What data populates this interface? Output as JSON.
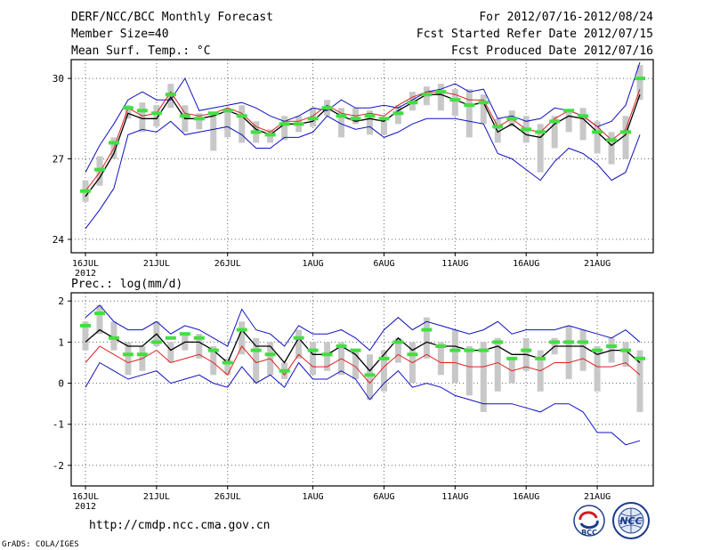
{
  "header": {
    "title": "DERF/NCC/BCC Monthly Forecast",
    "member_size": "Member Size=40",
    "variable": "Mean Surf. Temp.: °C",
    "period": "For 2012/07/16-2012/08/24",
    "start_date": "Fcst Started Refer Date 2012/07/15",
    "produced_date": "Fcst Produced Date 2012/07/16"
  },
  "footer": {
    "url": "http://cmdp.ncc.cma.gov.cn",
    "credit": "GrADS: COLA/IGES",
    "logo_left": "BCC",
    "logo_right": "NCC"
  },
  "colors": {
    "mean": "#000000",
    "median": "#e02020",
    "envelope": "#1010c0",
    "bar": "#c8c8c8",
    "obs": "#40e040"
  },
  "chart_data": [
    {
      "type": "line",
      "title": "Mean Surf. Temp.: °C",
      "x_tick_labels": [
        "16JUL",
        "21JUL",
        "26JUL",
        "1AUG",
        "6AUG",
        "11AUG",
        "16AUG",
        "21AUG"
      ],
      "x_year_label": "2012",
      "x_tick_days": [
        0,
        5,
        10,
        16,
        21,
        26,
        31,
        36
      ],
      "ylim": [
        23.5,
        30.7
      ],
      "yticks": [
        24,
        27,
        30
      ],
      "days": [
        0,
        1,
        2,
        3,
        4,
        5,
        6,
        7,
        8,
        9,
        10,
        11,
        12,
        13,
        14,
        15,
        16,
        17,
        18,
        19,
        20,
        21,
        22,
        23,
        24,
        25,
        26,
        27,
        28,
        29,
        30,
        31,
        32,
        33,
        34,
        35,
        36,
        37,
        38,
        39
      ],
      "series": [
        {
          "name": "upper",
          "values": [
            26.5,
            27.5,
            28.3,
            29.2,
            29.5,
            29.2,
            29.2,
            30.0,
            28.8,
            28.9,
            29.0,
            29.1,
            28.9,
            28.6,
            28.4,
            28.6,
            28.9,
            28.8,
            29.2,
            28.9,
            28.9,
            29.0,
            28.9,
            29.2,
            29.5,
            29.6,
            29.8,
            29.5,
            29.6,
            28.5,
            28.6,
            28.4,
            28.5,
            28.9,
            28.8,
            28.6,
            28.2,
            28.4,
            29.0,
            30.6
          ]
        },
        {
          "name": "mean",
          "values": [
            25.6,
            26.3,
            27.2,
            28.7,
            28.5,
            28.5,
            29.3,
            28.5,
            28.5,
            28.6,
            28.8,
            28.6,
            28.1,
            27.9,
            28.3,
            28.3,
            28.4,
            28.9,
            28.6,
            28.4,
            28.5,
            28.4,
            28.8,
            29.1,
            29.4,
            29.4,
            29.2,
            29.0,
            29.1,
            28.0,
            28.3,
            27.9,
            27.8,
            28.3,
            28.6,
            28.5,
            28.0,
            27.5,
            27.9,
            29.4
          ]
        },
        {
          "name": "median",
          "values": [
            25.8,
            26.5,
            27.4,
            28.9,
            28.6,
            28.7,
            29.5,
            28.7,
            28.6,
            28.7,
            28.9,
            28.7,
            28.2,
            28.0,
            28.4,
            28.4,
            28.6,
            29.0,
            28.7,
            28.6,
            28.7,
            28.6,
            29.0,
            29.3,
            29.5,
            29.5,
            29.4,
            29.2,
            29.2,
            28.2,
            28.5,
            28.1,
            28.0,
            28.5,
            28.8,
            28.6,
            28.2,
            27.7,
            28.1,
            29.6
          ]
        },
        {
          "name": "lower",
          "values": [
            24.4,
            25.1,
            25.9,
            27.9,
            28.1,
            28.0,
            28.4,
            27.9,
            28.0,
            28.1,
            28.2,
            27.9,
            27.4,
            27.4,
            27.8,
            27.8,
            28.0,
            28.6,
            28.3,
            28.1,
            28.2,
            27.8,
            28.0,
            28.3,
            28.5,
            28.5,
            28.5,
            28.4,
            28.3,
            27.2,
            27.0,
            26.6,
            26.2,
            26.9,
            27.4,
            27.2,
            26.8,
            26.2,
            26.5,
            27.9
          ]
        },
        {
          "name": "obs",
          "values": [
            25.8,
            26.6,
            27.6,
            28.9,
            28.8,
            28.7,
            29.4,
            28.6,
            28.5,
            28.7,
            28.8,
            28.6,
            28.0,
            27.9,
            28.3,
            28.3,
            28.5,
            28.9,
            28.6,
            28.5,
            28.6,
            28.5,
            28.7,
            29.1,
            29.4,
            29.5,
            29.2,
            29.0,
            29.1,
            28.2,
            28.5,
            28.1,
            28.0,
            28.4,
            28.8,
            28.6,
            28.0,
            27.7,
            28.0,
            30.0
          ]
        }
      ],
      "bars": [
        [
          25.4,
          26.2
        ],
        [
          26.0,
          27.1
        ],
        [
          27.0,
          27.8
        ],
        [
          28.5,
          29.0
        ],
        [
          28.0,
          29.1
        ],
        [
          28.2,
          29.0
        ],
        [
          28.9,
          29.8
        ],
        [
          28.0,
          29.0
        ],
        [
          28.1,
          28.7
        ],
        [
          27.3,
          28.7
        ],
        [
          27.8,
          28.9
        ],
        [
          27.6,
          29.0
        ],
        [
          27.6,
          28.4
        ],
        [
          27.6,
          28.1
        ],
        [
          27.7,
          28.6
        ],
        [
          28.0,
          28.6
        ],
        [
          28.2,
          28.9
        ],
        [
          28.6,
          29.2
        ],
        [
          27.8,
          28.9
        ],
        [
          28.3,
          28.9
        ],
        [
          27.9,
          28.8
        ],
        [
          27.9,
          28.4
        ],
        [
          28.3,
          29.0
        ],
        [
          28.8,
          29.5
        ],
        [
          29.0,
          29.7
        ],
        [
          28.8,
          29.8
        ],
        [
          28.6,
          29.6
        ],
        [
          27.8,
          29.6
        ],
        [
          28.3,
          29.4
        ],
        [
          27.6,
          28.5
        ],
        [
          28.2,
          28.8
        ],
        [
          27.6,
          28.6
        ],
        [
          26.5,
          28.3
        ],
        [
          27.4,
          28.6
        ],
        [
          28.0,
          28.8
        ],
        [
          27.7,
          28.9
        ],
        [
          27.2,
          28.4
        ],
        [
          26.8,
          28.0
        ],
        [
          27.0,
          28.6
        ],
        [
          29.2,
          30.5
        ]
      ]
    },
    {
      "type": "line",
      "title": "Prec.: log(mm/d)",
      "x_tick_labels": [
        "16JUL",
        "21JUL",
        "26JUL",
        "1AUG",
        "6AUG",
        "11AUG",
        "16AUG",
        "21AUG"
      ],
      "x_year_label": "2012",
      "x_tick_days": [
        0,
        5,
        10,
        16,
        21,
        26,
        31,
        36
      ],
      "ylim": [
        -2.5,
        2.2
      ],
      "yticks": [
        -2,
        -1,
        0,
        1,
        2
      ],
      "days": [
        0,
        1,
        2,
        3,
        4,
        5,
        6,
        7,
        8,
        9,
        10,
        11,
        12,
        13,
        14,
        15,
        16,
        17,
        18,
        19,
        20,
        21,
        22,
        23,
        24,
        25,
        26,
        27,
        28,
        29,
        30,
        31,
        32,
        33,
        34,
        35,
        36,
        37,
        38,
        39
      ],
      "series": [
        {
          "name": "upper",
          "values": [
            1.6,
            1.9,
            1.5,
            1.3,
            1.3,
            1.5,
            1.2,
            1.4,
            1.3,
            1.1,
            0.9,
            1.8,
            1.3,
            1.2,
            0.9,
            1.4,
            1.2,
            1.2,
            1.3,
            1.1,
            0.8,
            1.3,
            1.6,
            1.3,
            1.5,
            1.4,
            1.3,
            1.2,
            1.3,
            1.5,
            1.2,
            1.3,
            1.3,
            1.3,
            1.4,
            1.3,
            1.2,
            1.1,
            1.3,
            1.0
          ]
        },
        {
          "name": "mean",
          "values": [
            1.0,
            1.3,
            1.1,
            0.9,
            0.9,
            1.2,
            0.8,
            1.0,
            1.0,
            0.8,
            0.5,
            1.3,
            0.9,
            0.9,
            0.5,
            1.1,
            0.7,
            0.7,
            0.9,
            0.7,
            0.3,
            0.7,
            1.1,
            0.8,
            1.0,
            0.9,
            0.9,
            0.8,
            0.8,
            0.9,
            0.7,
            0.7,
            0.6,
            0.9,
            0.9,
            0.9,
            0.7,
            0.8,
            0.8,
            0.5
          ]
        },
        {
          "name": "median",
          "values": [
            0.5,
            0.9,
            0.7,
            0.5,
            0.6,
            0.8,
            0.5,
            0.6,
            0.7,
            0.5,
            0.2,
            0.9,
            0.5,
            0.6,
            0.2,
            0.7,
            0.4,
            0.4,
            0.6,
            0.4,
            0.0,
            0.4,
            0.7,
            0.5,
            0.7,
            0.5,
            0.5,
            0.4,
            0.4,
            0.5,
            0.3,
            0.4,
            0.3,
            0.5,
            0.5,
            0.6,
            0.4,
            0.4,
            0.5,
            0.2
          ]
        },
        {
          "name": "lower",
          "values": [
            -0.1,
            0.5,
            0.3,
            0.1,
            0.2,
            0.3,
            0.0,
            0.1,
            0.2,
            0.0,
            -0.1,
            0.4,
            0.0,
            0.2,
            -0.1,
            0.5,
            0.1,
            0.1,
            0.3,
            0.1,
            -0.4,
            0.0,
            0.3,
            -0.1,
            0.0,
            -0.1,
            -0.3,
            -0.4,
            -0.5,
            -0.5,
            -0.5,
            -0.6,
            -0.7,
            -0.5,
            -0.5,
            -0.7,
            -1.2,
            -1.2,
            -1.5,
            -1.4
          ]
        },
        {
          "name": "obs",
          "values": [
            1.4,
            1.7,
            1.1,
            0.7,
            0.7,
            1.0,
            1.1,
            1.2,
            1.1,
            0.8,
            0.5,
            1.3,
            0.8,
            0.7,
            0.3,
            1.1,
            0.8,
            0.7,
            0.9,
            0.8,
            0.2,
            0.6,
            1.0,
            0.7,
            1.3,
            0.9,
            0.8,
            0.8,
            0.8,
            1.0,
            0.6,
            0.8,
            0.6,
            1.0,
            1.0,
            1.0,
            0.8,
            0.9,
            0.8,
            0.6
          ]
        }
      ],
      "bars": [
        [
          0.8,
          1.5
        ],
        [
          1.2,
          1.9
        ],
        [
          0.8,
          1.5
        ],
        [
          0.2,
          1.0
        ],
        [
          0.3,
          0.9
        ],
        [
          0.9,
          1.5
        ],
        [
          0.5,
          1.0
        ],
        [
          0.8,
          1.2
        ],
        [
          0.6,
          1.2
        ],
        [
          0.2,
          0.9
        ],
        [
          0.2,
          0.6
        ],
        [
          0.7,
          1.5
        ],
        [
          0.0,
          1.1
        ],
        [
          0.2,
          1.0
        ],
        [
          0.1,
          0.5
        ],
        [
          0.6,
          1.3
        ],
        [
          0.2,
          1.0
        ],
        [
          0.3,
          1.0
        ],
        [
          0.2,
          1.0
        ],
        [
          0.1,
          0.8
        ],
        [
          -0.4,
          0.7
        ],
        [
          -0.2,
          0.8
        ],
        [
          0.5,
          1.1
        ],
        [
          0.0,
          1.0
        ],
        [
          0.6,
          1.6
        ],
        [
          0.2,
          1.0
        ],
        [
          0.0,
          1.3
        ],
        [
          -0.3,
          0.9
        ],
        [
          -0.7,
          1.0
        ],
        [
          -0.2,
          1.1
        ],
        [
          0.0,
          0.6
        ],
        [
          0.3,
          1.1
        ],
        [
          -0.2,
          0.8
        ],
        [
          0.7,
          1.1
        ],
        [
          0.1,
          1.4
        ],
        [
          0.3,
          1.3
        ],
        [
          -0.2,
          0.9
        ],
        [
          0.5,
          1.1
        ],
        [
          0.4,
          1.0
        ],
        [
          -0.7,
          0.8
        ]
      ]
    }
  ]
}
